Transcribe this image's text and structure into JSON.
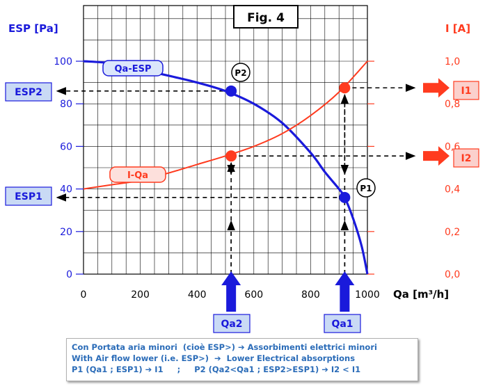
{
  "chart_data": {
    "type": "line",
    "title": "Fig. 4",
    "xlabel": "Qa [m³/h]",
    "ylabel_left": "ESP [Pa]",
    "ylabel_right": "I [A]",
    "xlim": [
      0,
      1000
    ],
    "ylim_left": [
      0,
      100
    ],
    "ylim_right": [
      0.0,
      1.0
    ],
    "x_ticks": [
      "0",
      "200",
      "400",
      "600",
      "800",
      "1000"
    ],
    "y_left_ticks": [
      "0",
      "20",
      "40",
      "60",
      "80",
      "100"
    ],
    "y_right_ticks": [
      "0,0",
      "0,2",
      "0,4",
      "0,6",
      "0,8",
      "1,0"
    ],
    "grid": true,
    "series": [
      {
        "name": "Qa-ESP",
        "axis": "left",
        "color": "#1a1adb",
        "x": [
          0,
          100,
          200,
          300,
          400,
          500,
          600,
          700,
          800,
          850,
          900,
          920,
          950,
          980,
          1000
        ],
        "y": [
          100,
          99,
          96.2,
          93.2,
          90,
          86,
          80,
          71,
          57,
          48,
          40,
          36,
          26,
          13,
          0
        ]
      },
      {
        "name": "I-Qa",
        "axis": "right",
        "color": "#ff3b1f",
        "x": [
          0,
          100,
          200,
          300,
          400,
          500,
          600,
          700,
          800,
          900,
          1000
        ],
        "y": [
          0.4,
          0.42,
          0.44,
          0.475,
          0.515,
          0.555,
          0.6,
          0.66,
          0.745,
          0.855,
          1.0
        ]
      }
    ],
    "points": [
      {
        "label": "P1",
        "x": 920,
        "esp": 36
      },
      {
        "label": "P2",
        "x": 520,
        "esp": 86
      }
    ],
    "current_points": [
      {
        "x": 920,
        "i": 0.875
      },
      {
        "x": 520,
        "i": 0.555
      }
    ],
    "annotations": {
      "esp1": "ESP1",
      "esp2": "ESP2",
      "i1": "I1",
      "i2": "I2",
      "qa1": "Qa1",
      "qa2": "Qa2"
    }
  },
  "caption": {
    "line1": "Con Portata aria minori  (cioè ESP>) ➔ Assorbimenti elettrici minori",
    "line2": "With Air flow lower (i.e. ESP>)  ➔  Lower Electrical absorptions",
    "line3": "P1 (Qa1 ; ESP1) ➔ I1     ;     P2 (Qa2<Qa1 ; ESP2>ESP1) ➔ I2 < I1"
  },
  "colors": {
    "blue": "#1a1adb",
    "red": "#ff3b1f",
    "label_bg": "#c9daf5",
    "label_bg_red": "#fbd0cc"
  }
}
